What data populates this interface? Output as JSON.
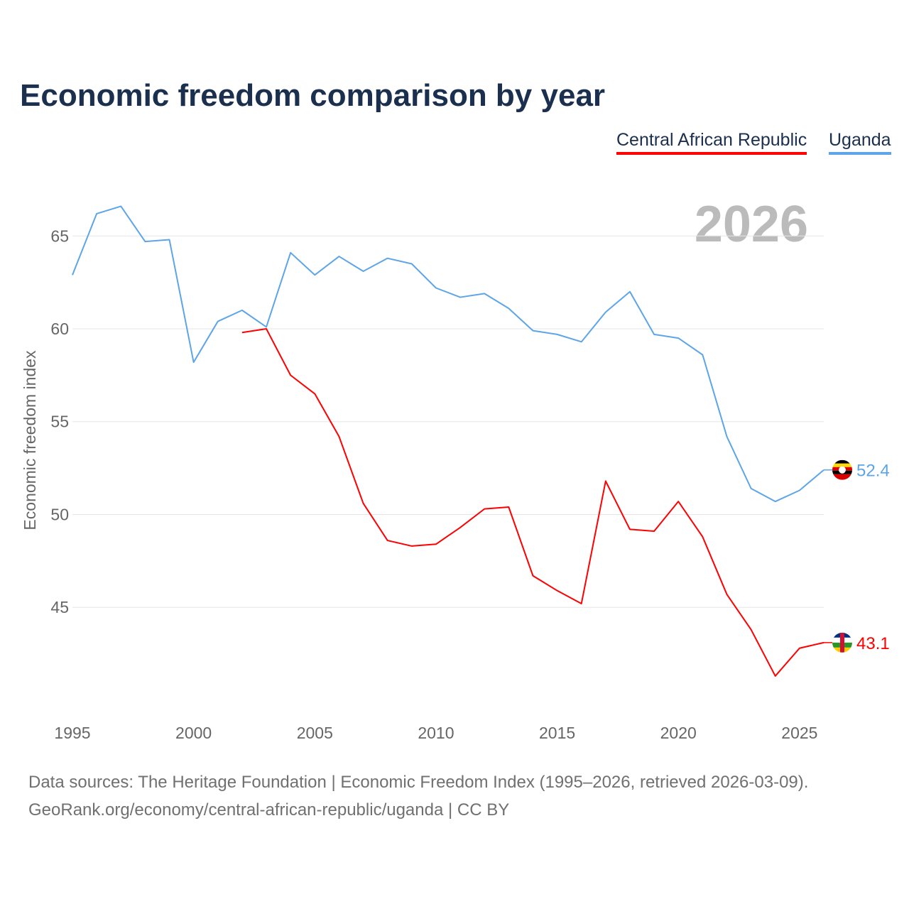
{
  "chart_data": {
    "type": "line",
    "title": "Economic freedom comparison by year",
    "xlabel": "",
    "ylabel": "Economic freedom index",
    "year_label": "2026",
    "xlim": [
      1995,
      2026
    ],
    "ylim": [
      39.5,
      67
    ],
    "x_ticks": [
      1995,
      2000,
      2005,
      2010,
      2015,
      2020,
      2025
    ],
    "y_ticks": [
      45,
      50,
      55,
      60,
      65
    ],
    "grid": true,
    "legend_placement": "top-right",
    "series": [
      {
        "name": "Central African Republic",
        "color": "#ff0000",
        "end_label": "43.1",
        "x": [
          2002,
          2003,
          2004,
          2005,
          2006,
          2007,
          2008,
          2009,
          2010,
          2011,
          2012,
          2013,
          2014,
          2015,
          2016,
          2017,
          2018,
          2019,
          2020,
          2021,
          2022,
          2023,
          2024,
          2025,
          2026
        ],
        "values": [
          59.8,
          60.0,
          57.5,
          56.5,
          54.2,
          50.6,
          48.6,
          48.3,
          48.4,
          49.3,
          50.3,
          50.4,
          46.7,
          45.9,
          45.2,
          51.8,
          49.2,
          49.1,
          50.7,
          48.8,
          45.7,
          43.8,
          41.3,
          42.8,
          43.1
        ]
      },
      {
        "name": "Uganda",
        "color": "#5da5e8",
        "end_label": "52.4",
        "x": [
          1995,
          1996,
          1997,
          1998,
          1999,
          2000,
          2001,
          2002,
          2003,
          2004,
          2005,
          2006,
          2007,
          2008,
          2009,
          2010,
          2011,
          2012,
          2013,
          2014,
          2015,
          2016,
          2017,
          2018,
          2019,
          2020,
          2021,
          2022,
          2023,
          2024,
          2025,
          2026
        ],
        "values": [
          62.9,
          66.2,
          66.6,
          64.7,
          64.8,
          58.2,
          60.4,
          61.0,
          60.1,
          64.1,
          62.9,
          63.9,
          63.1,
          63.8,
          63.5,
          62.2,
          61.7,
          61.9,
          61.1,
          59.9,
          59.7,
          59.3,
          60.9,
          62.0,
          59.7,
          59.5,
          58.6,
          54.2,
          51.4,
          50.7,
          51.3,
          52.4
        ]
      }
    ]
  },
  "footer": {
    "line1": "Data sources: The Heritage Foundation | Economic Freedom Index (1995–2026, retrieved 2026-03-09).",
    "line2": "GeoRank.org/economy/central-african-republic/uganda | CC BY"
  }
}
